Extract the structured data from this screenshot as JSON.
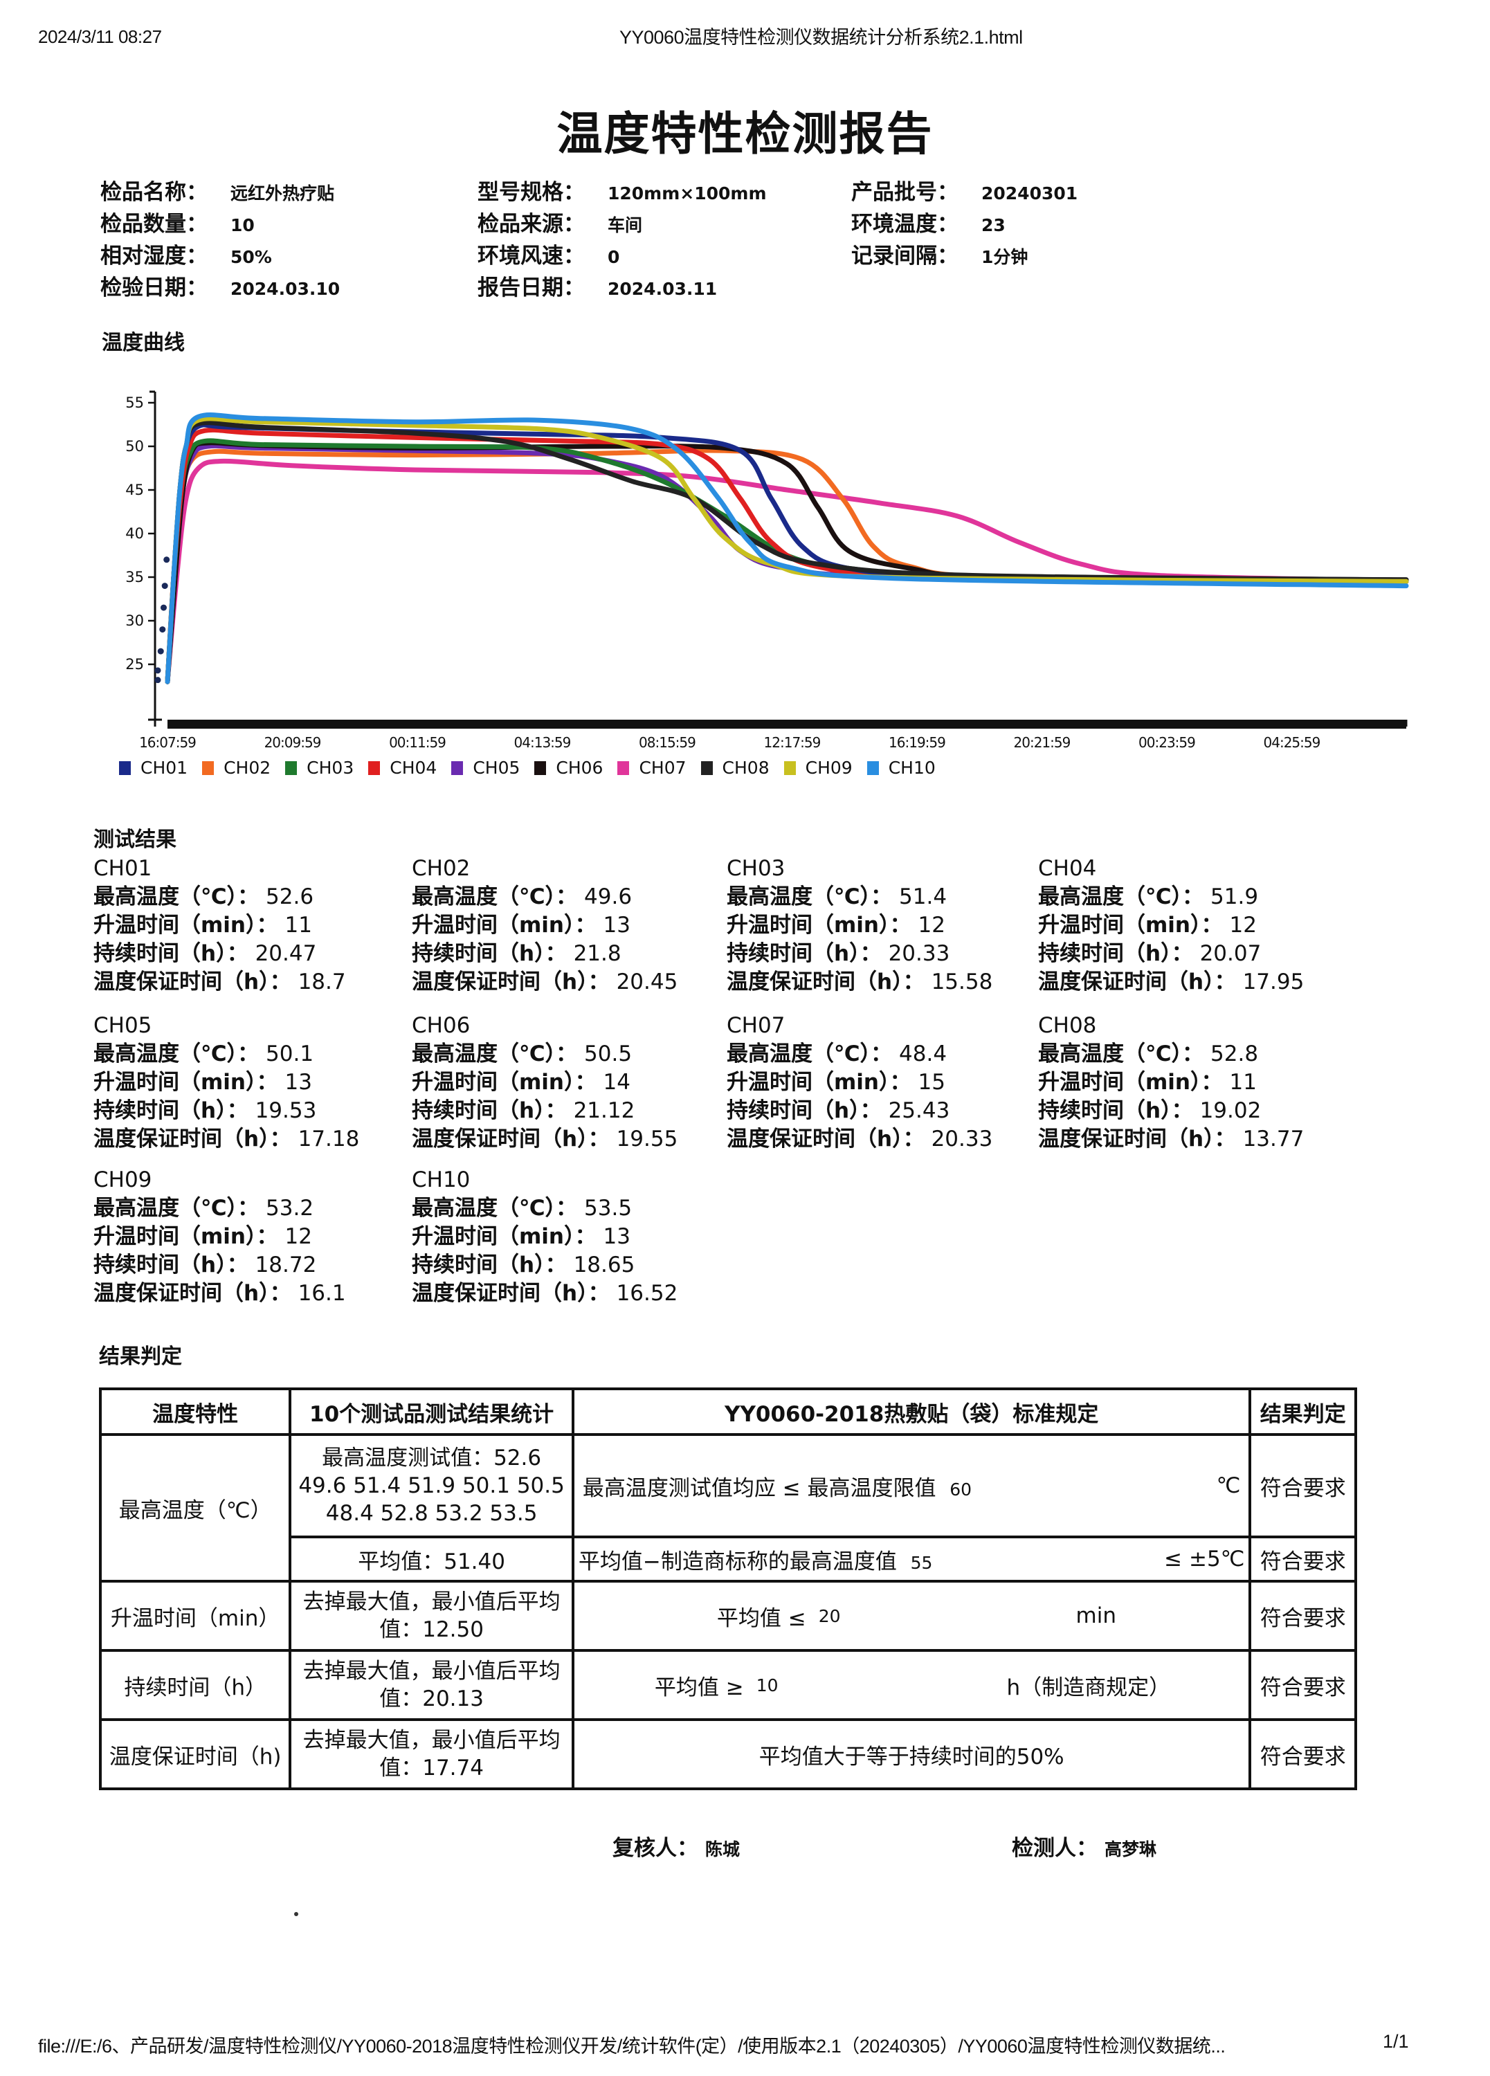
{
  "print_header": {
    "timestamp": "2024/3/11 08:27",
    "page_title": "YY0060温度特性检测仪数据统计分析系统2.1.html"
  },
  "report": {
    "title": "温度特性检测报告",
    "info": [
      {
        "label": "检品名称：",
        "value": "远红外热疗贴"
      },
      {
        "label": "型号规格：",
        "value": "120mm×100mm"
      },
      {
        "label": "产品批号：",
        "value": "20240301"
      },
      {
        "label": "检品数量：",
        "value": "10"
      },
      {
        "label": "检品来源：",
        "value": "车间"
      },
      {
        "label": "环境温度：",
        "value": "23"
      },
      {
        "label": "相对湿度：",
        "value": "50%"
      },
      {
        "label": "环境风速：",
        "value": "0"
      },
      {
        "label": "记录间隔：",
        "value": "1分钟"
      },
      {
        "label": "检验日期：",
        "value": "2024.03.10"
      },
      {
        "label": "报告日期：",
        "value": "2024.03.11"
      }
    ]
  },
  "chart_section_label": "温度曲线",
  "chart_data": {
    "type": "line",
    "title": "温度曲线",
    "xlabel": "",
    "ylabel": "",
    "x_unit": "hours since 16:07:59",
    "yticks": [
      25,
      30,
      35,
      40,
      45,
      50,
      55
    ],
    "ylim": [
      20,
      56
    ],
    "xtick_labels": [
      "16:07:59",
      "20:09:59",
      "00:11:59",
      "04:13:59",
      "08:15:59",
      "12:17:59",
      "16:19:59",
      "20:21:59",
      "00:23:59",
      "04:25:59"
    ],
    "xtick_hours": [
      0,
      4.033,
      8.067,
      12.1,
      16.133,
      20.167,
      24.2,
      28.233,
      32.267,
      36.3
    ],
    "xlim": [
      0,
      40
    ],
    "grid": false,
    "legend_position": "bottom",
    "series": [
      {
        "name": "CH01",
        "color": "#1a2a8a",
        "points": [
          [
            0,
            23
          ],
          [
            0.2,
            35
          ],
          [
            0.4,
            45
          ],
          [
            0.6,
            50
          ],
          [
            1,
            52.3
          ],
          [
            2,
            52.2
          ],
          [
            6,
            51.8
          ],
          [
            12,
            51.4
          ],
          [
            16,
            51
          ],
          [
            18.5,
            49.5
          ],
          [
            19.5,
            44
          ],
          [
            20.5,
            38.5
          ],
          [
            22,
            36
          ],
          [
            26,
            35
          ],
          [
            40,
            34.5
          ]
        ]
      },
      {
        "name": "CH02",
        "color": "#f26a21",
        "points": [
          [
            0,
            23
          ],
          [
            0.25,
            35
          ],
          [
            0.5,
            45
          ],
          [
            0.8,
            48.5
          ],
          [
            1.5,
            49.4
          ],
          [
            3,
            49.2
          ],
          [
            8,
            49
          ],
          [
            14,
            49.2
          ],
          [
            18,
            49.5
          ],
          [
            20.5,
            48.5
          ],
          [
            21.8,
            44
          ],
          [
            22.8,
            38.5
          ],
          [
            24,
            36.2
          ],
          [
            27,
            35
          ],
          [
            40,
            34.6
          ]
        ]
      },
      {
        "name": "CH03",
        "color": "#1f7a2e",
        "points": [
          [
            0,
            23
          ],
          [
            0.2,
            35
          ],
          [
            0.45,
            45
          ],
          [
            0.7,
            49
          ],
          [
            1.2,
            50.6
          ],
          [
            3,
            50.2
          ],
          [
            8,
            50
          ],
          [
            12,
            49.8
          ],
          [
            14,
            48.5
          ],
          [
            16,
            46
          ],
          [
            18,
            42
          ],
          [
            20,
            37.5
          ],
          [
            22,
            36
          ],
          [
            26,
            35
          ],
          [
            40,
            34.6
          ]
        ]
      },
      {
        "name": "CH04",
        "color": "#e02020",
        "points": [
          [
            0,
            23
          ],
          [
            0.2,
            35
          ],
          [
            0.45,
            45
          ],
          [
            0.7,
            50
          ],
          [
            1.2,
            51.8
          ],
          [
            3,
            51.5
          ],
          [
            8,
            51
          ],
          [
            13,
            50.6
          ],
          [
            16,
            50.2
          ],
          [
            17.5,
            48.5
          ],
          [
            18.5,
            44
          ],
          [
            19.5,
            39
          ],
          [
            21,
            36.2
          ],
          [
            25,
            35
          ],
          [
            40,
            34.5
          ]
        ]
      },
      {
        "name": "CH05",
        "color": "#6a2bb0",
        "points": [
          [
            0,
            23
          ],
          [
            0.25,
            35
          ],
          [
            0.5,
            45
          ],
          [
            0.8,
            48.8
          ],
          [
            1.3,
            50
          ],
          [
            3,
            49.8
          ],
          [
            8,
            49.5
          ],
          [
            12,
            49.2
          ],
          [
            14,
            48.5
          ],
          [
            16,
            46.5
          ],
          [
            17.5,
            42
          ],
          [
            18.5,
            38
          ],
          [
            20,
            36
          ],
          [
            24,
            35
          ],
          [
            40,
            34.5
          ]
        ]
      },
      {
        "name": "CH06",
        "color": "#1a1010",
        "points": [
          [
            0,
            23
          ],
          [
            0.25,
            35
          ],
          [
            0.5,
            45
          ],
          [
            0.8,
            49.5
          ],
          [
            1.3,
            50.4
          ],
          [
            3,
            50.1
          ],
          [
            8,
            49.8
          ],
          [
            14,
            50
          ],
          [
            18,
            49.8
          ],
          [
            20,
            48
          ],
          [
            21,
            43
          ],
          [
            22,
            38
          ],
          [
            24,
            36
          ],
          [
            27,
            35
          ],
          [
            40,
            34.7
          ]
        ]
      },
      {
        "name": "CH07",
        "color": "#e0359a",
        "points": [
          [
            0,
            23
          ],
          [
            0.3,
            35
          ],
          [
            0.6,
            44
          ],
          [
            1,
            47.5
          ],
          [
            1.8,
            48.3
          ],
          [
            4,
            47.8
          ],
          [
            8,
            47.3
          ],
          [
            14,
            47
          ],
          [
            17,
            46.5
          ],
          [
            20,
            45
          ],
          [
            23,
            43.5
          ],
          [
            25.5,
            42
          ],
          [
            27.5,
            39
          ],
          [
            29.5,
            36.5
          ],
          [
            32,
            35.2
          ],
          [
            40,
            34.6
          ]
        ]
      },
      {
        "name": "CH08",
        "color": "#222222",
        "points": [
          [
            0,
            23
          ],
          [
            0.2,
            35
          ],
          [
            0.4,
            45
          ],
          [
            0.6,
            50
          ],
          [
            1,
            52.6
          ],
          [
            3,
            52.2
          ],
          [
            8,
            51.5
          ],
          [
            11,
            50.5
          ],
          [
            13,
            48.5
          ],
          [
            15,
            46
          ],
          [
            17,
            44
          ],
          [
            19,
            39
          ],
          [
            21,
            36.5
          ],
          [
            26,
            35.2
          ],
          [
            40,
            34.7
          ]
        ]
      },
      {
        "name": "CH09",
        "color": "#c8c020",
        "points": [
          [
            0,
            23
          ],
          [
            0.2,
            35
          ],
          [
            0.4,
            45
          ],
          [
            0.6,
            50
          ],
          [
            1,
            53
          ],
          [
            3,
            52.8
          ],
          [
            8,
            52.4
          ],
          [
            12,
            52
          ],
          [
            14,
            51
          ],
          [
            16,
            48.5
          ],
          [
            17,
            44
          ],
          [
            18,
            39.5
          ],
          [
            19.5,
            36.5
          ],
          [
            23,
            35
          ],
          [
            40,
            34.5
          ]
        ]
      },
      {
        "name": "CH10",
        "color": "#2a8ee0",
        "points": [
          [
            0,
            23
          ],
          [
            0.2,
            35
          ],
          [
            0.4,
            45
          ],
          [
            0.6,
            50
          ],
          [
            1,
            53.4
          ],
          [
            3,
            53.2
          ],
          [
            8,
            52.8
          ],
          [
            12,
            53
          ],
          [
            15,
            52
          ],
          [
            16.5,
            49.5
          ],
          [
            17.8,
            44
          ],
          [
            18.8,
            39
          ],
          [
            20,
            36.2
          ],
          [
            24,
            34.8
          ],
          [
            40,
            34
          ]
        ]
      }
    ]
  },
  "results": {
    "title": "测试结果",
    "labels": {
      "max_temp": "最高温度（℃）：",
      "rise_time": "升温时间（min）：",
      "duration": "持续时间（h）：",
      "guarantee": "温度保证时间（h）："
    },
    "channels": [
      {
        "name": "CH01",
        "max_temp": "52.6",
        "rise_time": "11",
        "duration": "20.47",
        "guarantee": "18.7"
      },
      {
        "name": "CH02",
        "max_temp": "49.6",
        "rise_time": "13",
        "duration": "21.8",
        "guarantee": "20.45"
      },
      {
        "name": "CH03",
        "max_temp": "51.4",
        "rise_time": "12",
        "duration": "20.33",
        "guarantee": "15.58"
      },
      {
        "name": "CH04",
        "max_temp": "51.9",
        "rise_time": "12",
        "duration": "20.07",
        "guarantee": "17.95"
      },
      {
        "name": "CH05",
        "max_temp": "50.1",
        "rise_time": "13",
        "duration": "19.53",
        "guarantee": "17.18"
      },
      {
        "name": "CH06",
        "max_temp": "50.5",
        "rise_time": "14",
        "duration": "21.12",
        "guarantee": "19.55"
      },
      {
        "name": "CH07",
        "max_temp": "48.4",
        "rise_time": "15",
        "duration": "25.43",
        "guarantee": "20.33"
      },
      {
        "name": "CH08",
        "max_temp": "52.8",
        "rise_time": "11",
        "duration": "19.02",
        "guarantee": "13.77"
      },
      {
        "name": "CH09",
        "max_temp": "53.2",
        "rise_time": "12",
        "duration": "18.72",
        "guarantee": "16.1"
      },
      {
        "name": "CH10",
        "max_temp": "53.5",
        "rise_time": "13",
        "duration": "18.65",
        "guarantee": "16.52"
      }
    ]
  },
  "verdict": {
    "title": "结果判定",
    "headers": [
      "温度特性",
      "10个测试品测试结果统计",
      "YY0060-2018热敷贴（袋）标准规定",
      "结果判定"
    ],
    "rows": {
      "max_temp": {
        "property": "最高温度（℃）",
        "stat_line1": "最高温度测试值：52.6",
        "stat_line2": "49.6 51.4 51.9 50.1 50.5",
        "stat_line3": "48.4 52.8 53.2 53.5",
        "std_text": "最高温度测试值均应 ≤ 最高温度限值",
        "std_value": "60",
        "std_unit": "℃",
        "result": "符合要求",
        "avg_stat": "平均值：51.40",
        "avg_std_text": "平均值−制造商标称的最高温度值",
        "avg_std_value": "55",
        "avg_std_unit": "≤ ±5℃",
        "avg_result": "符合要求"
      },
      "rise_time": {
        "property": "升温时间（min）",
        "stat_line1": "去掉最大值，最小值后平均",
        "stat_line2": "值：12.50",
        "std_text": "平均值 ≤",
        "std_value": "20",
        "std_unit": "min",
        "result": "符合要求"
      },
      "duration": {
        "property": "持续时间（h）",
        "stat_line1": "去掉最大值，最小值后平均",
        "stat_line2": "值：20.13",
        "std_text": "平均值 ≥",
        "std_value": "10",
        "std_unit": "h（制造商规定）",
        "result": "符合要求"
      },
      "guarantee": {
        "property": "温度保证时间（h)",
        "stat_line1": "去掉最大值，最小值后平均",
        "stat_line2": "值：17.74",
        "std_text": "平均值大于等于持续时间的50%",
        "result": "符合要求"
      }
    }
  },
  "signatures": {
    "reviewer_label": "复核人：",
    "reviewer_name": "陈城",
    "tester_label": "检测人：",
    "tester_name": "高梦琳"
  },
  "print_footer": {
    "path": "file:///E:/6、产品研发/温度特性检测仪/YY0060-2018温度特性检测仪开发/统计软件(定）/使用版本2.1（20240305）/YY0060温度特性检测仪数据统...",
    "page": "1/1"
  }
}
